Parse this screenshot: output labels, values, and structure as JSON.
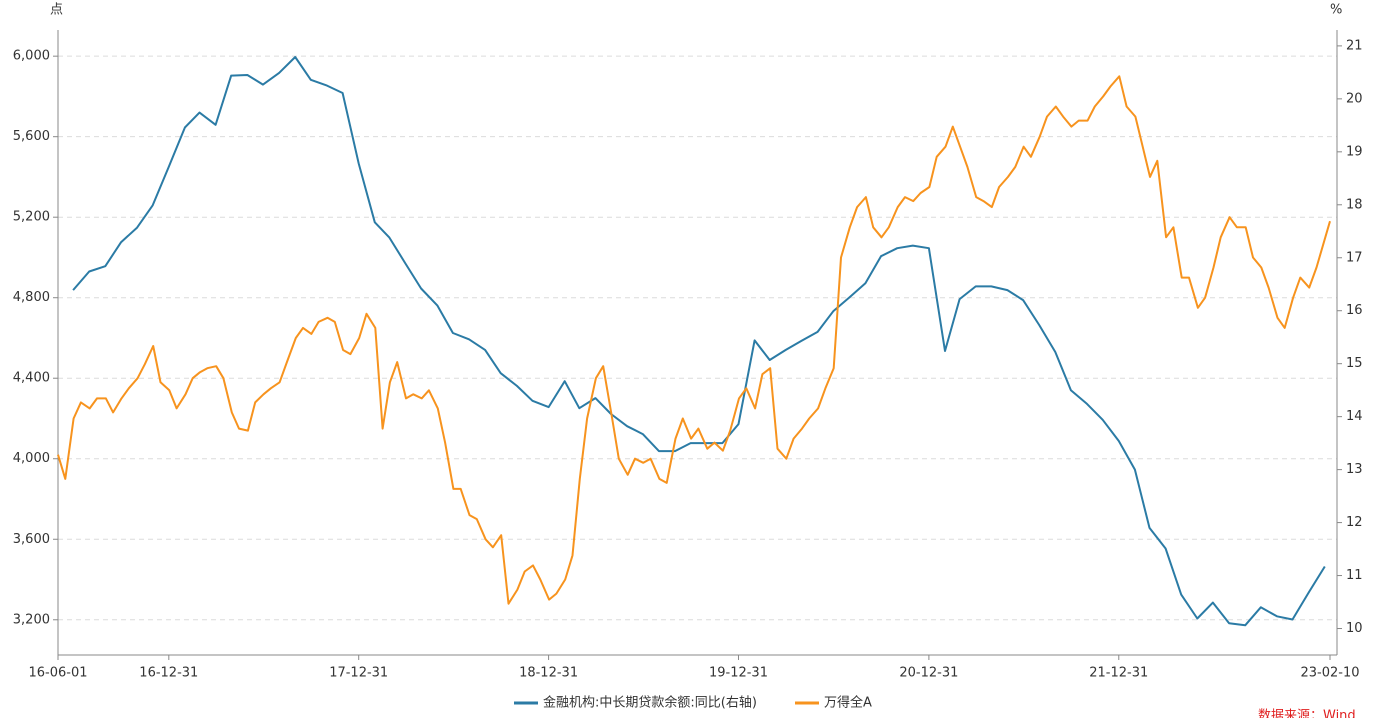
{
  "chart_data": {
    "type": "line",
    "y_unit": "点",
    "y2_unit": "%",
    "source": "数据来源：Wind",
    "xlim": [
      "16-06-01",
      "23-02-10"
    ],
    "xticks": [
      "16-06-01",
      "16-12-31",
      "17-12-31",
      "18-12-31",
      "19-12-31",
      "20-12-31",
      "21-12-31",
      "23-02-10"
    ],
    "ylim": [
      3025,
      6130
    ],
    "yticks": [
      {
        "value": 3200,
        "label": "3,200"
      },
      {
        "value": 3600,
        "label": "3,600"
      },
      {
        "value": 4000,
        "label": "4,000"
      },
      {
        "value": 4400,
        "label": "4,400"
      },
      {
        "value": 4800,
        "label": "4,800"
      },
      {
        "value": 5200,
        "label": "5,200"
      },
      {
        "value": 5600,
        "label": "5,600"
      },
      {
        "value": 6000,
        "label": "6,000"
      }
    ],
    "y2lim": [
      9.5,
      21.3
    ],
    "y2ticks": [
      10,
      11,
      12,
      13,
      14,
      15,
      16,
      17,
      18,
      19,
      20,
      21
    ],
    "grid": true,
    "legend": "bottom",
    "series": [
      {
        "name": "金融机构:中长期贷款余额:同比(右轴)",
        "color": "#2b7ba5",
        "axis": "y2",
        "x": [
          "16-06-30",
          "16-07-31",
          "16-08-31",
          "16-09-30",
          "16-10-31",
          "16-11-30",
          "16-12-31",
          "17-01-31",
          "17-02-28",
          "17-03-31",
          "17-04-30",
          "17-05-31",
          "17-06-30",
          "17-07-31",
          "17-08-31",
          "17-09-30",
          "17-10-31",
          "17-11-30",
          "17-12-31",
          "18-01-31",
          "18-02-28",
          "18-03-31",
          "18-04-30",
          "18-05-31",
          "18-06-30",
          "18-07-31",
          "18-08-31",
          "18-09-30",
          "18-10-31",
          "18-11-30",
          "18-12-31",
          "19-01-31",
          "19-02-28",
          "19-03-31",
          "19-04-30",
          "19-05-31",
          "19-06-30",
          "19-07-31",
          "19-08-31",
          "19-09-30",
          "19-10-31",
          "19-11-30",
          "19-12-31",
          "20-01-31",
          "20-02-29",
          "20-03-31",
          "20-04-30",
          "20-05-31",
          "20-06-30",
          "20-07-31",
          "20-08-31",
          "20-09-30",
          "20-10-31",
          "20-11-30",
          "20-12-31",
          "21-01-31",
          "21-02-28",
          "21-03-31",
          "21-04-30",
          "21-05-31",
          "21-06-30",
          "21-07-31",
          "21-08-31",
          "21-09-30",
          "21-10-31",
          "21-11-30",
          "21-12-31",
          "22-01-31",
          "22-02-28",
          "22-03-31",
          "22-04-30",
          "22-05-31",
          "22-06-30",
          "22-07-31",
          "22-08-31",
          "22-09-30",
          "22-10-31",
          "22-11-30",
          "22-12-31",
          "23-01-31"
        ],
        "values": [
          16.39,
          16.74,
          16.84,
          17.29,
          17.57,
          17.99,
          18.72,
          19.46,
          19.74,
          19.51,
          20.44,
          20.45,
          20.27,
          20.49,
          20.79,
          20.36,
          20.25,
          20.11,
          18.78,
          17.67,
          17.38,
          16.89,
          16.42,
          16.1,
          15.58,
          15.46,
          15.26,
          14.82,
          14.58,
          14.3,
          14.18,
          14.67,
          14.16,
          14.35,
          14.05,
          13.82,
          13.67,
          13.35,
          13.35,
          13.5,
          13.5,
          13.5,
          13.86,
          15.44,
          15.07,
          15.26,
          15.43,
          15.6,
          15.99,
          16.25,
          16.52,
          17.03,
          17.18,
          17.23,
          17.18,
          15.24,
          16.22,
          16.46,
          16.46,
          16.39,
          16.2,
          15.73,
          15.22,
          14.5,
          14.24,
          13.94,
          13.54,
          13.0,
          11.9,
          11.51,
          10.64,
          10.19,
          10.49,
          10.1,
          10.06,
          10.4,
          10.23,
          10.17,
          10.68,
          11.17
        ]
      },
      {
        "name": "万得全A",
        "color": "#f7931e",
        "x": [
          "16-06-01",
          "16-06-15",
          "16-07-01",
          "16-07-15",
          "16-08-01",
          "16-08-15",
          "16-09-01",
          "16-09-15",
          "16-10-01",
          "16-10-15",
          "16-11-01",
          "16-11-15",
          "16-12-01",
          "16-12-15",
          "17-01-01",
          "17-01-15",
          "17-02-01",
          "17-02-15",
          "17-03-01",
          "17-03-15",
          "17-04-01",
          "17-04-15",
          "17-05-01",
          "17-05-15",
          "17-06-01",
          "17-06-15",
          "17-07-01",
          "17-07-15",
          "17-08-01",
          "17-08-15",
          "17-09-01",
          "17-09-15",
          "17-10-01",
          "17-10-15",
          "17-11-01",
          "17-11-15",
          "17-12-01",
          "17-12-15",
          "18-01-01",
          "18-01-15",
          "18-02-01",
          "18-02-15",
          "18-03-01",
          "18-03-15",
          "18-04-01",
          "18-04-15",
          "18-05-01",
          "18-05-15",
          "18-06-01",
          "18-06-15",
          "18-07-01",
          "18-07-15",
          "18-08-01",
          "18-08-15",
          "18-09-01",
          "18-09-15",
          "18-10-01",
          "18-10-15",
          "18-11-01",
          "18-11-15",
          "18-12-01",
          "18-12-15",
          "19-01-01",
          "19-01-15",
          "19-02-01",
          "19-02-15",
          "19-03-01",
          "19-03-15",
          "19-04-01",
          "19-04-15",
          "19-05-01",
          "19-05-15",
          "19-06-01",
          "19-06-15",
          "19-07-01",
          "19-07-15",
          "19-08-01",
          "19-08-15",
          "19-09-01",
          "19-09-15",
          "19-10-01",
          "19-10-15",
          "19-11-01",
          "19-11-15",
          "19-12-01",
          "19-12-15",
          "20-01-01",
          "20-01-15",
          "20-02-01",
          "20-02-15",
          "20-03-01",
          "20-03-15",
          "20-04-01",
          "20-04-15",
          "20-05-01",
          "20-05-15",
          "20-06-01",
          "20-06-15",
          "20-07-01",
          "20-07-15",
          "20-08-01",
          "20-08-15",
          "20-09-01",
          "20-09-15",
          "20-10-01",
          "20-10-15",
          "20-11-01",
          "20-11-15",
          "20-12-01",
          "20-12-15",
          "21-01-01",
          "21-01-15",
          "21-02-01",
          "21-02-15",
          "21-03-01",
          "21-03-15",
          "21-04-01",
          "21-04-15",
          "21-05-01",
          "21-05-15",
          "21-06-01",
          "21-06-15",
          "21-07-01",
          "21-07-15",
          "21-08-01",
          "21-08-15",
          "21-09-01",
          "21-09-15",
          "21-10-01",
          "21-10-15",
          "21-11-01",
          "21-11-15",
          "21-12-01",
          "21-12-15",
          "22-01-01",
          "22-01-15",
          "22-02-01",
          "22-02-15",
          "22-03-01",
          "22-03-15",
          "22-04-01",
          "22-04-15",
          "22-05-01",
          "22-05-15",
          "22-06-01",
          "22-06-15",
          "22-07-01",
          "22-07-15",
          "22-08-01",
          "22-08-15",
          "22-09-01",
          "22-09-15",
          "22-10-01",
          "22-10-15",
          "22-11-01",
          "22-11-15",
          "22-12-01",
          "22-12-15",
          "23-01-01",
          "23-01-15",
          "23-02-01",
          "23-02-10"
        ],
        "values": [
          4020,
          3900,
          4200,
          4280,
          4250,
          4300,
          4300,
          4230,
          4300,
          4350,
          4400,
          4470,
          4560,
          4380,
          4340,
          4250,
          4320,
          4400,
          4430,
          4450,
          4460,
          4400,
          4230,
          4150,
          4140,
          4280,
          4320,
          4350,
          4380,
          4480,
          4600,
          4650,
          4620,
          4680,
          4700,
          4680,
          4540,
          4520,
          4600,
          4720,
          4650,
          4150,
          4380,
          4480,
          4300,
          4320,
          4300,
          4340,
          4250,
          4080,
          3850,
          3850,
          3720,
          3700,
          3600,
          3560,
          3620,
          3280,
          3350,
          3440,
          3470,
          3400,
          3300,
          3330,
          3400,
          3520,
          3900,
          4200,
          4400,
          4460,
          4220,
          4000,
          3920,
          4000,
          3980,
          4000,
          3900,
          3880,
          4100,
          4200,
          4100,
          4150,
          4050,
          4080,
          4040,
          4140,
          4300,
          4350,
          4250,
          4420,
          4450,
          4050,
          4000,
          4100,
          4150,
          4200,
          4250,
          4350,
          4450,
          5000,
          5150,
          5250,
          5300,
          5150,
          5100,
          5150,
          5250,
          5300,
          5280,
          5320,
          5350,
          5500,
          5550,
          5650,
          5550,
          5450,
          5300,
          5280,
          5250,
          5350,
          5400,
          5450,
          5550,
          5500,
          5600,
          5700,
          5750,
          5700,
          5650,
          5680,
          5680,
          5750,
          5800,
          5850,
          5900,
          5750,
          5700,
          5550,
          5400,
          5480,
          5100,
          5150,
          4900,
          4900,
          4750,
          4800,
          4950,
          5100,
          5200,
          5150,
          5150,
          5000,
          4950,
          4850,
          4700,
          4650,
          4800,
          4900,
          4850,
          4950,
          5100,
          5180
        ]
      }
    ]
  }
}
